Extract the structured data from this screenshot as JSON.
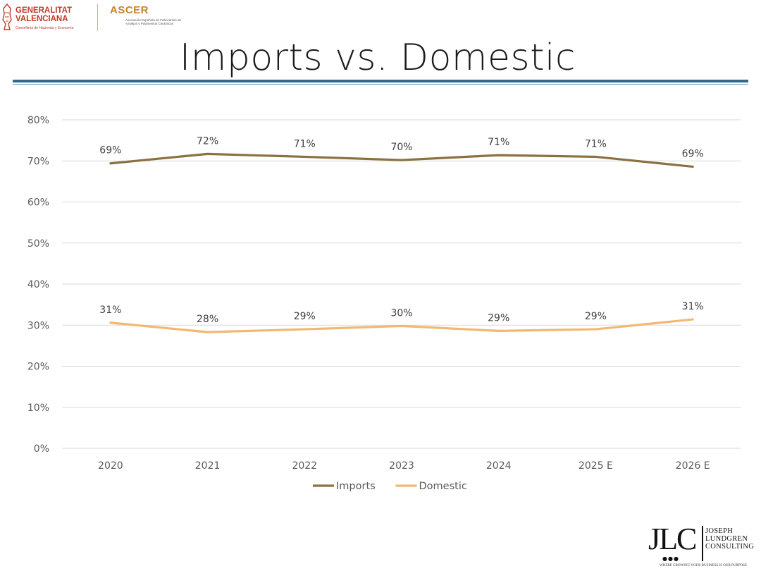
{
  "logos": {
    "generalitat": {
      "line1": "GENERALITAT",
      "line2": "VALENCIANA",
      "sub": "Conselleria de Hacienda y Economía"
    },
    "ascer": {
      "word": "ASCER",
      "sub": "Asociación Española de Fabricantes de Azulejos y Pavimentos Cerámicos"
    },
    "jlc": {
      "mark": "JLC",
      "line1": "JOSEPH",
      "line2": "LUNDGREN",
      "line3": "CONSULTING",
      "tagline": "WHERE GROWING YOUR BUSINESS IS OUR PURPOSE"
    }
  },
  "slide": {
    "title": "Imports vs. Domestic"
  },
  "chart_data": {
    "type": "line",
    "title": "Imports vs. Domestic",
    "categories": [
      "2020",
      "2021",
      "2022",
      "2023",
      "2024",
      "2025 E",
      "2026 E"
    ],
    "ylim": [
      0,
      80
    ],
    "yticks": [
      0,
      10,
      20,
      30,
      40,
      50,
      60,
      70,
      80
    ],
    "ytick_labels": [
      "0%",
      "10%",
      "20%",
      "30%",
      "40%",
      "50%",
      "60%",
      "70%",
      "80%"
    ],
    "grid": true,
    "legend_position": "bottom",
    "xlabel": "",
    "ylabel": "",
    "series": [
      {
        "name": "Imports",
        "color": "#8b7140",
        "values": [
          69.4,
          71.7,
          71.0,
          70.2,
          71.4,
          71.0,
          68.6
        ],
        "labels": [
          "69%",
          "72%",
          "71%",
          "70%",
          "71%",
          "71%",
          "69%"
        ]
      },
      {
        "name": "Domestic",
        "color": "#f2b872",
        "values": [
          30.6,
          28.3,
          29.0,
          29.8,
          28.6,
          29.0,
          31.4
        ],
        "labels": [
          "31%",
          "28%",
          "29%",
          "30%",
          "29%",
          "29%",
          "31%"
        ]
      }
    ]
  }
}
